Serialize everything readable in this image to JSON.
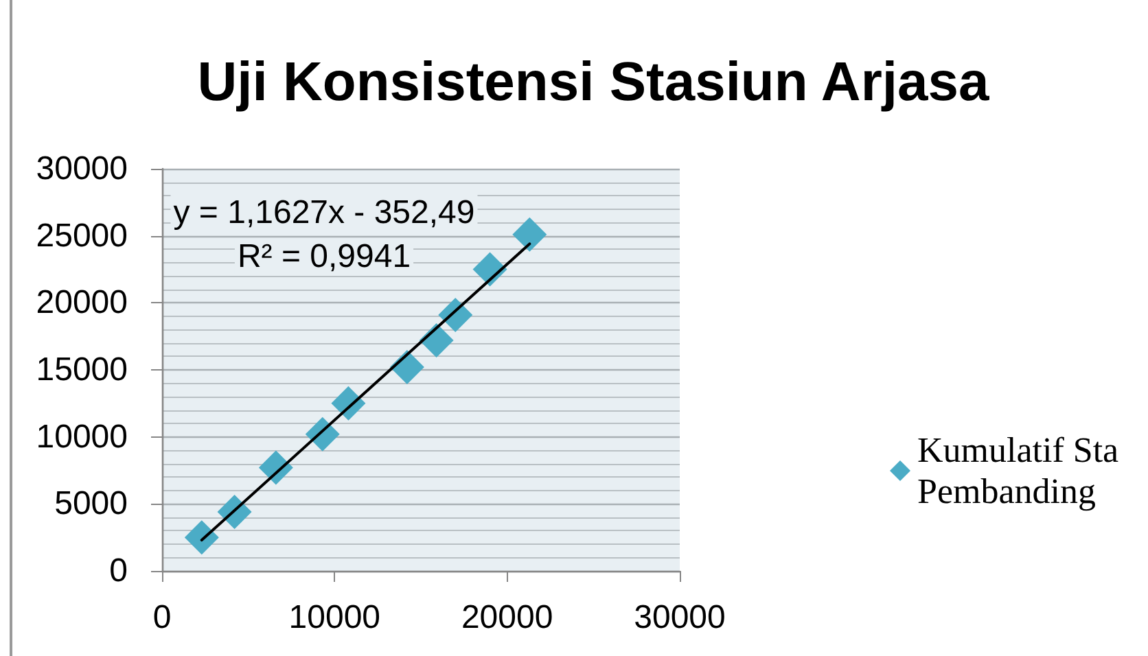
{
  "chart_data": {
    "type": "scatter",
    "title": "Uji Konsistensi Stasiun Arjasa",
    "annotations": [
      "y = 1,1627x - 352,49",
      "R² = 0,9941"
    ],
    "series": [
      {
        "name": "Kumulatif Sta Pembanding",
        "color": "#4bacc6",
        "marker": "diamond",
        "x": [
          2300,
          4200,
          6600,
          9300,
          10800,
          14200,
          15900,
          17000,
          19000,
          21300
        ],
        "values": [
          2500,
          4400,
          7700,
          10200,
          12500,
          15200,
          17200,
          19100,
          22500,
          25100
        ]
      },
      {
        "type": "line",
        "color": "#000000",
        "marker": "none",
        "line_style": "solid",
        "x": [
          2300,
          21300
        ],
        "values": [
          2300,
          24400
        ]
      }
    ],
    "xlim": [
      0,
      30000
    ],
    "xticks": [
      0,
      10000,
      20000,
      30000
    ],
    "ylim": [
      0,
      30000
    ],
    "yticks": [
      0,
      5000,
      10000,
      15000,
      20000,
      25000,
      30000
    ],
    "grid": "y",
    "legend": "right"
  }
}
